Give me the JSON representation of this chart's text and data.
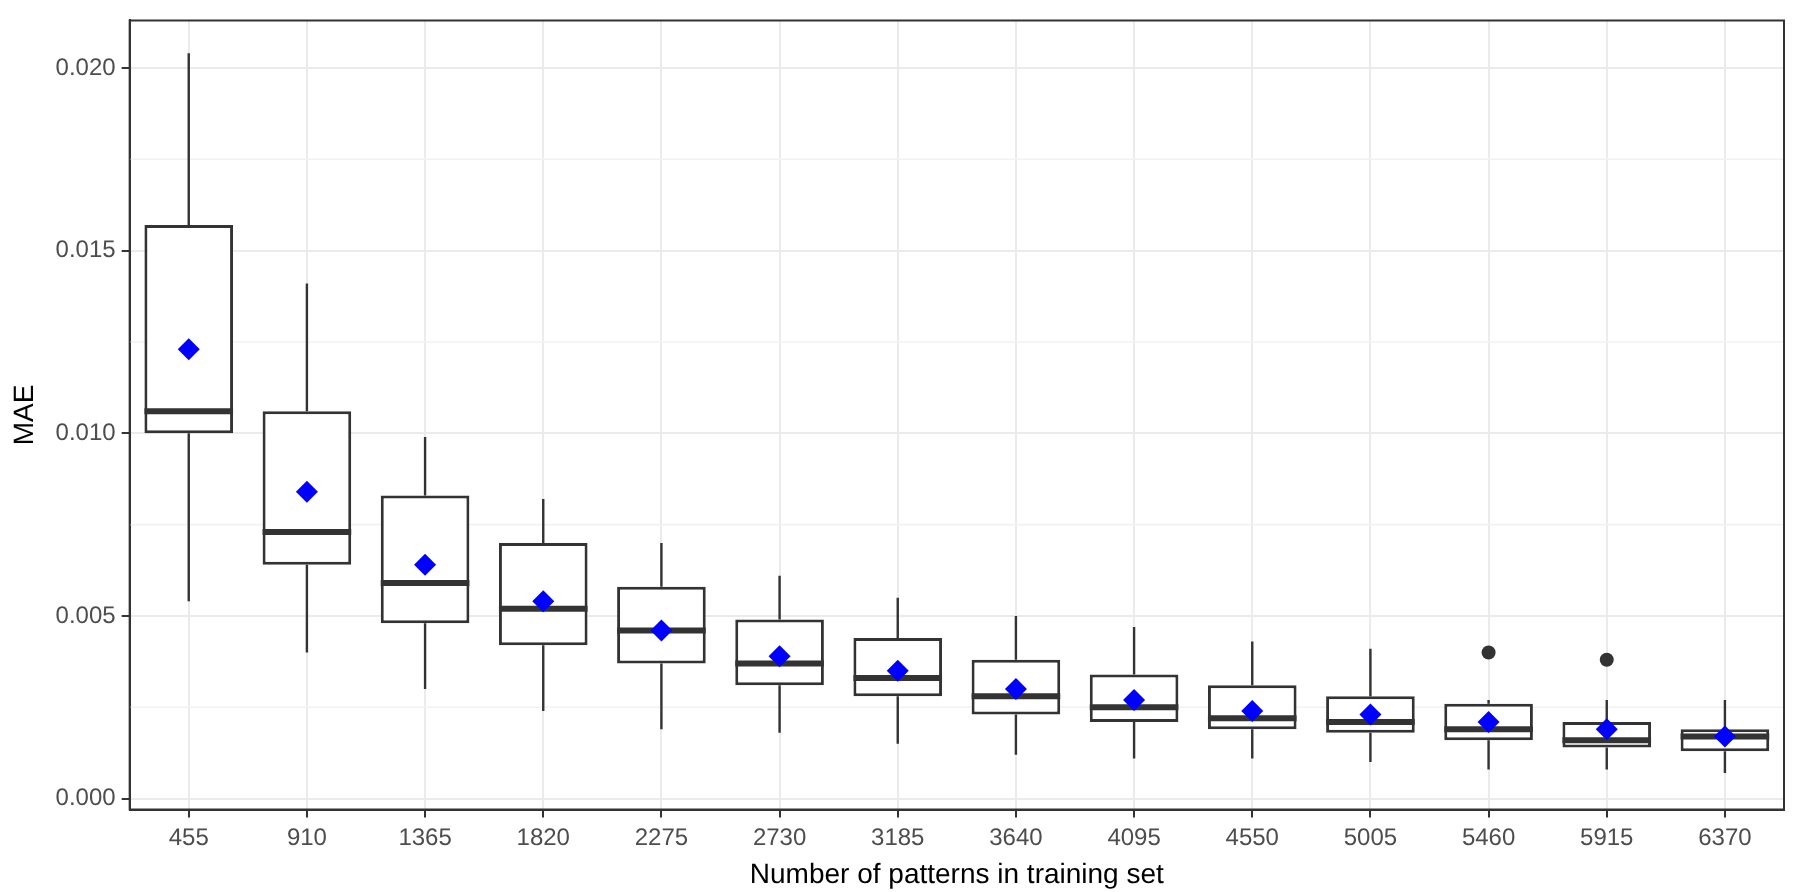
{
  "chart_data": {
    "type": "box",
    "xlabel": "Number of patterns in training set",
    "ylabel": "MAE",
    "categories": [
      "455",
      "910",
      "1365",
      "1820",
      "2275",
      "2730",
      "3185",
      "3640",
      "4095",
      "4550",
      "5005",
      "5460",
      "5915",
      "6370"
    ],
    "ylim": [
      -0.0003,
      0.0213
    ],
    "yticks": [
      {
        "value": 0,
        "label": "0.000"
      },
      {
        "value": 0.005,
        "label": "0.005"
      },
      {
        "value": 0.01,
        "label": "0.010"
      },
      {
        "value": 0.015,
        "label": "0.015"
      },
      {
        "value": 0.02,
        "label": "0.020"
      }
    ],
    "grid": true,
    "legend": false,
    "series": [
      {
        "color": "#333333",
        "boxes": [
          {
            "low": 0.0054,
            "q1": 0.01,
            "median": 0.0106,
            "q3": 0.0157,
            "high": 0.0204
          },
          {
            "low": 0.004,
            "q1": 0.0064,
            "median": 0.0073,
            "q3": 0.0106,
            "high": 0.0141
          },
          {
            "low": 0.003,
            "q1": 0.0048,
            "median": 0.0059,
            "q3": 0.0083,
            "high": 0.0099
          },
          {
            "low": 0.0024,
            "q1": 0.0042,
            "median": 0.0052,
            "q3": 0.007,
            "high": 0.0082
          },
          {
            "low": 0.0019,
            "q1": 0.0037,
            "median": 0.0046,
            "q3": 0.0058,
            "high": 0.007
          },
          {
            "low": 0.0018,
            "q1": 0.0031,
            "median": 0.0037,
            "q3": 0.0049,
            "high": 0.0061
          },
          {
            "low": 0.0015,
            "q1": 0.0028,
            "median": 0.0033,
            "q3": 0.0044,
            "high": 0.0055
          },
          {
            "low": 0.0012,
            "q1": 0.0023,
            "median": 0.0028,
            "q3": 0.0038,
            "high": 0.005
          },
          {
            "low": 0.0011,
            "q1": 0.0021,
            "median": 0.0025,
            "q3": 0.0034,
            "high": 0.0047
          },
          {
            "low": 0.0011,
            "q1": 0.0019,
            "median": 0.0022,
            "q3": 0.0031,
            "high": 0.0043
          },
          {
            "low": 0.001,
            "q1": 0.0018,
            "median": 0.0021,
            "q3": 0.0028,
            "high": 0.0041
          },
          {
            "low": 0.0008,
            "q1": 0.0016,
            "median": 0.0019,
            "q3": 0.0026,
            "high": 0.0027,
            "outliers": [
              0.004
            ]
          },
          {
            "low": 0.0008,
            "q1": 0.0014,
            "median": 0.0016,
            "q3": 0.0021,
            "high": 0.0027,
            "outliers": [
              0.0038
            ]
          },
          {
            "low": 0.0007,
            "q1": 0.0013,
            "median": 0.0017,
            "q3": 0.0019,
            "high": 0.0027
          }
        ]
      },
      {
        "type": "scatter",
        "color": "#0000ff",
        "marker": "diamond",
        "values": [
          0.0123,
          0.0084,
          0.0064,
          0.0054,
          0.0046,
          0.0039,
          0.0035,
          0.003,
          0.0027,
          0.0024,
          0.0023,
          0.0021,
          0.0019,
          0.0017
        ]
      }
    ]
  }
}
